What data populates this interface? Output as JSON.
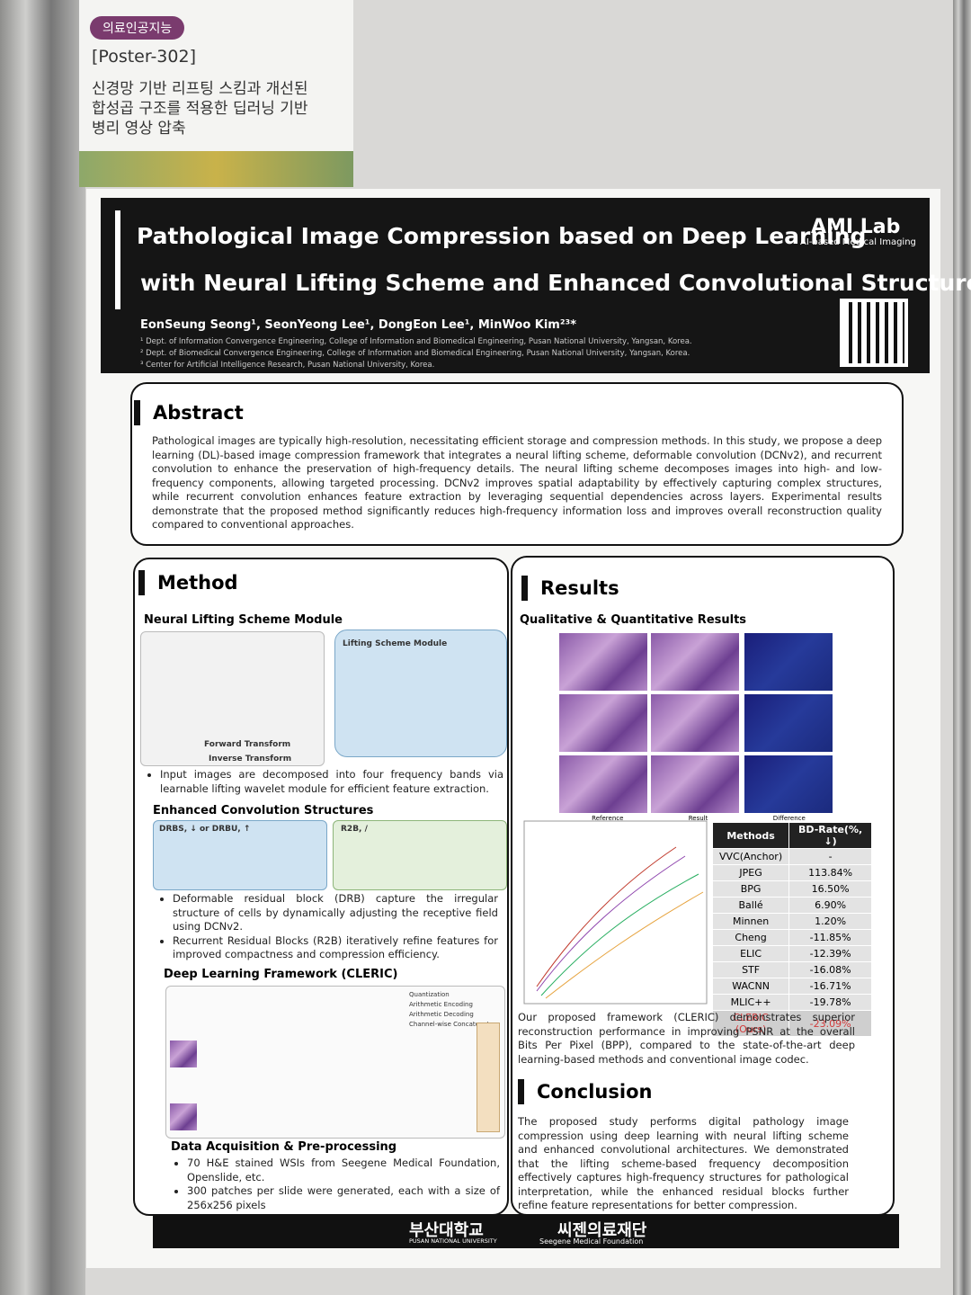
{
  "sign": {
    "tag": "의료인공지능",
    "code": "[Poster-302]",
    "title": "신경망 기반 리프팅 스킴과 개선된 합성곱 구조를 적용한 딥러닝 기반 병리 영상 압축"
  },
  "header": {
    "title_lines": [
      "Pathological Image Compression based on Deep Learning",
      "with  Neural Lifting Scheme and Enhanced Convolutional Structures"
    ],
    "lab": "AMI Lab",
    "lab_sub": "AI-based Medical Imaging",
    "authors": "EonSeung Seong¹, SeonYeong Lee¹, DongEon Lee¹, MinWoo Kim²³*",
    "affiliations": [
      "¹ Dept. of Information Convergence Engineering, College of Information and Biomedical Engineering, Pusan National University, Yangsan, Korea.",
      "² Dept. of Biomedical Convergence Engineering, College of Information and Biomedical Engineering, Pusan National University, Yangsan, Korea.",
      "³ Center for Artificial Intelligence Research, Pusan National University, Korea."
    ]
  },
  "abstract": {
    "heading": "Abstract",
    "text": "Pathological images are typically high-resolution, necessitating efficient storage and compression methods. In this study, we propose a deep learning (DL)-based image compression framework that integrates a neural lifting scheme, deformable convolution (DCNv2), and recurrent convolution to enhance the preservation of high-frequency details. The neural lifting scheme decomposes images into high- and low-frequency components, allowing targeted processing. DCNv2 improves spatial adaptability by effectively capturing complex structures, while recurrent convolution enhances feature extraction by leveraging sequential dependencies across layers. Experimental results demonstrate that the proposed method significantly reduces high-frequency information loss and improves overall reconstruction quality compared to conventional approaches."
  },
  "method": {
    "heading": "Method",
    "nlsm": {
      "heading": "Neural Lifting Scheme Module",
      "diagram_labels": [
        "Forward Transform",
        "Inverse Transform",
        "Lifting Scheme Module"
      ],
      "bullet": "Input images are decomposed into four frequency bands via learnable lifting wavelet module for efficient feature extraction."
    },
    "ecs": {
      "heading": "Enhanced Convolution Structures",
      "diagram_labels": [
        "DRBS, ↓ or DRBU, ↑",
        "R2B, /"
      ],
      "bullets": [
        "Deformable residual block (DRB) capture the irregular structure of cells by dynamically adjusting the receptive field using DCNv2.",
        "Recurrent Residual Blocks (R2B) iteratively refine features for improved compactness and compression efficiency."
      ]
    },
    "cleric": {
      "heading": "Deep Learning Framework (CLERIC)",
      "legend": [
        "Quantization",
        "Arithmetic Encoding",
        "Arithmetic Decoding",
        "Channel-wise Concatenate"
      ]
    },
    "data": {
      "heading": "Data Acquisition & Pre-processing",
      "bullets": [
        "70 H&E stained WSIs from Seegene Medical Foundation, Openslide, etc.",
        "300 patches per slide were generated, each with a size of 256x256 pixels"
      ]
    }
  },
  "results": {
    "heading": "Results",
    "subheading": "Qualitative & Quantitative Results",
    "image_labels": [
      "Reference",
      "Result",
      "Difference"
    ],
    "table": {
      "columns": [
        "Methods",
        "BD-Rate(%, ↓)"
      ],
      "rows": [
        [
          "VVC(Anchor)",
          "-"
        ],
        [
          "JPEG",
          "113.84%"
        ],
        [
          "BPG",
          "16.50%"
        ],
        [
          "Ballé",
          "6.90%"
        ],
        [
          "Minnen",
          "1.20%"
        ],
        [
          "Cheng",
          "-11.85%"
        ],
        [
          "ELIC",
          "-12.39%"
        ],
        [
          "STF",
          "-16.08%"
        ],
        [
          "WACNN",
          "-16.71%"
        ],
        [
          "MLIC++",
          "-19.78%"
        ],
        [
          "CLERIC (Ours)",
          "-23.09%"
        ]
      ]
    },
    "text": "Our proposed framework (CLERIC) demonstrates superior reconstruction performance in improving PSNR at the overall Bits Per Pixel (BPP), compared to the state-of-the-art deep learning-based methods and conventional image codec."
  },
  "conclusion": {
    "heading": "Conclusion",
    "text": "The proposed study performs digital pathology image compression using deep learning with neural lifting scheme and enhanced convolutional architectures. We demonstrated that the lifting scheme-based frequency decomposition effectively captures high-frequency structures for pathological interpretation, while the enhanced residual blocks further refine feature representations for better compression."
  },
  "footer": {
    "university": "부산대학교",
    "university_en": "PUSAN NATIONAL UNIVERSITY",
    "foundation": "씨젠의료재단",
    "foundation_en": "Seegene Medical Foundation"
  }
}
